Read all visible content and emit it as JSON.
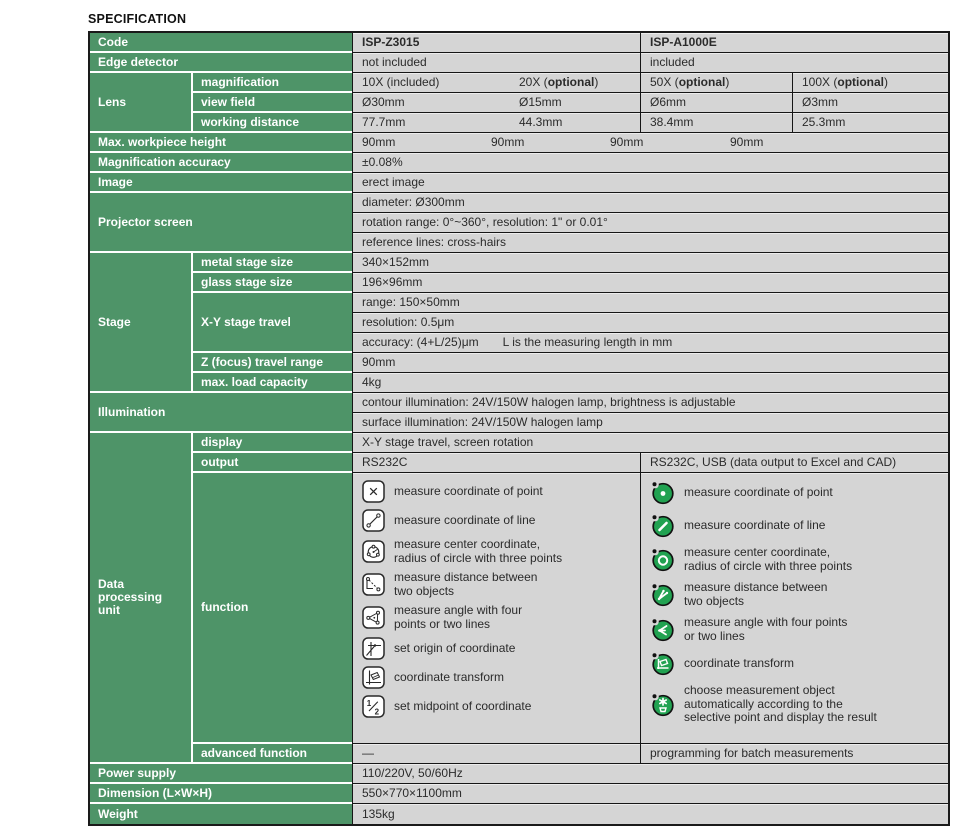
{
  "title": "SPECIFICATION",
  "colors": {
    "header_green": "#4e9468",
    "icon_green": "#21a251",
    "cell_gray": "#d5d5d5",
    "border_dark": "#1a1a1a"
  },
  "table": {
    "code": {
      "label": "Code",
      "a": "ISP-Z3015",
      "b": "ISP-A1000E"
    },
    "edge_detector": {
      "label": "Edge detector",
      "a": "not included",
      "b": "included"
    },
    "lens": {
      "label": "Lens",
      "rows": [
        {
          "label": "magnification",
          "values": [
            "10X (included)",
            "20X (optional)",
            "50X (optional)",
            "100X (optional)"
          ]
        },
        {
          "label": "view field",
          "values": [
            "Ø30mm",
            "Ø15mm",
            "Ø6mm",
            "Ø3mm"
          ]
        },
        {
          "label": "working distance",
          "values": [
            "77.7mm",
            "44.3mm",
            "38.4mm",
            "25.3mm"
          ]
        }
      ]
    },
    "max_workpiece_height": {
      "label": "Max. workpiece height",
      "values": [
        "90mm",
        "90mm",
        "90mm",
        "90mm"
      ]
    },
    "magnification_accuracy": {
      "label": "Magnification accuracy",
      "value": "±0.08%"
    },
    "image": {
      "label": "Image",
      "value": "erect image"
    },
    "projector_screen": {
      "label": "Projector screen",
      "rows": [
        "diameter: Ø300mm",
        "rotation range: 0°~360°, resolution: 1\" or 0.01°",
        "reference lines: cross-hairs"
      ]
    },
    "stage": {
      "label": "Stage",
      "metal": {
        "label": "metal stage size",
        "value": "340×152mm"
      },
      "glass": {
        "label": "glass stage size",
        "value": "196×96mm"
      },
      "xy": {
        "label": "X-Y stage travel",
        "range": "range: 150×50mm",
        "resolution": "resolution: 0.5μm",
        "accuracy": "accuracy: (4+L/25)μm",
        "accuracy_note": "L is the measuring length in mm"
      },
      "z": {
        "label": "Z (focus) travel range",
        "value": "90mm"
      },
      "load": {
        "label": "max. load capacity",
        "value": "4kg"
      }
    },
    "illumination": {
      "label": "Illumination",
      "rows": [
        "contour illumination: 24V/150W halogen lamp, brightness is adjustable",
        "surface illumination: 24V/150W halogen lamp"
      ]
    },
    "dpu": {
      "label": "Data\nprocessing\nunit",
      "display": {
        "label": "display",
        "value": "X-Y stage travel, screen rotation"
      },
      "output": {
        "label": "output",
        "a": "RS232C",
        "b": "RS232C, USB (data output to Excel and CAD)"
      },
      "function": {
        "label": "function",
        "a": [
          {
            "icon": "measure-point-icon",
            "label": "measure coordinate of point"
          },
          {
            "icon": "measure-line-icon",
            "label": "measure coordinate of line"
          },
          {
            "icon": "measure-circle-icon",
            "label": "measure center coordinate,\nradius of circle with three points"
          },
          {
            "icon": "measure-distance-icon",
            "label": "measure distance between\ntwo objects"
          },
          {
            "icon": "measure-angle-icon",
            "label": "measure angle with four\npoints or two lines"
          },
          {
            "icon": "set-origin-icon",
            "label": "set origin of coordinate"
          },
          {
            "icon": "coordinate-transform-icon",
            "label": "coordinate transform"
          },
          {
            "icon": "set-midpoint-icon",
            "label": "set midpoint of coordinate"
          }
        ],
        "b": [
          {
            "icon": "measure-point-icon",
            "label": "measure coordinate of point"
          },
          {
            "icon": "measure-line-icon",
            "label": "measure coordinate of line"
          },
          {
            "icon": "measure-circle-icon",
            "label": "measure center coordinate,\nradius of circle with three points"
          },
          {
            "icon": "measure-distance-icon",
            "label": "measure distance between\ntwo objects"
          },
          {
            "icon": "measure-angle-icon",
            "label": "measure angle with four points\nor two lines"
          },
          {
            "icon": "coordinate-transform-icon",
            "label": "coordinate transform"
          },
          {
            "icon": "auto-measure-icon",
            "label": "choose measurement object\nautomatically according to the\nselective point and display the result"
          }
        ]
      },
      "advanced": {
        "label": "advanced function",
        "a": "—",
        "b": "programming for batch measurements"
      }
    },
    "power_supply": {
      "label": "Power supply",
      "value": "110/220V, 50/60Hz"
    },
    "dimension": {
      "label": "Dimension (L×W×H)",
      "value": "550×770×1100mm"
    },
    "weight": {
      "label": "Weight",
      "value": "135kg"
    }
  }
}
